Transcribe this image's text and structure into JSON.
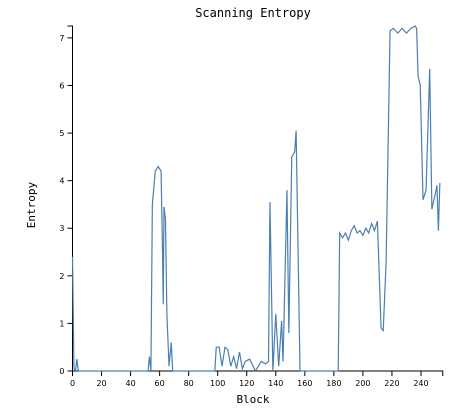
{
  "chart_data": {
    "type": "line",
    "title": "Scanning Entropy",
    "x_label": "Block",
    "y_label": "Entropy",
    "xlim": [
      0,
      255
    ],
    "ylim": [
      0,
      7.25
    ],
    "xticks": [
      0,
      20,
      40,
      60,
      80,
      100,
      120,
      140,
      160,
      180,
      200,
      220,
      240
    ],
    "yticks": [
      0,
      1,
      2,
      3,
      4,
      5,
      6,
      7
    ],
    "series": [
      {
        "name": "Entropy",
        "color": "#4a7fb0",
        "x": [
          0,
          1,
          2,
          3,
          4,
          52,
          53,
          54,
          55,
          57,
          59,
          61,
          62,
          62.5,
          63,
          64,
          65,
          66.5,
          68,
          69,
          98,
          99,
          101,
          103,
          105,
          107,
          109,
          111,
          113,
          115,
          117,
          119,
          122,
          126,
          130,
          133,
          135,
          136,
          138,
          140,
          142,
          144,
          145,
          147.7,
          149,
          151,
          153,
          154,
          156.7,
          183,
          184,
          186,
          188,
          190,
          192,
          194,
          196,
          198,
          200,
          202,
          204,
          206,
          208,
          210,
          212.5,
          214,
          216,
          218.7,
          221,
          224,
          227,
          230,
          233,
          236,
          237,
          238,
          239.5,
          241.4,
          243.5,
          246,
          247.5,
          249.7,
          251,
          252,
          253
        ],
        "values": [
          2.4,
          0.05,
          0,
          0.25,
          0,
          0,
          0.3,
          0,
          3.5,
          4.2,
          4.3,
          4.2,
          2.5,
          1.4,
          3.45,
          3.2,
          1.2,
          0.1,
          0.6,
          0,
          0,
          0.5,
          0.5,
          0.1,
          0.5,
          0.45,
          0.1,
          0.3,
          0.05,
          0.4,
          0.05,
          0.2,
          0.25,
          0,
          0.2,
          0.15,
          0.2,
          3.55,
          0,
          1.2,
          0.1,
          1.05,
          0.2,
          3.8,
          0.8,
          4.5,
          4.6,
          5.05,
          0,
          0,
          2.9,
          2.8,
          2.9,
          2.75,
          2.95,
          3.05,
          2.9,
          2.95,
          2.85,
          3.0,
          2.9,
          3.1,
          2.95,
          3.15,
          0.9,
          0.85,
          2.3,
          7.15,
          7.2,
          7.1,
          7.2,
          7.1,
          7.2,
          7.25,
          7.2,
          6.2,
          6.0,
          3.6,
          3.8,
          6.35,
          3.4,
          3.7,
          3.9,
          2.95,
          3.95
        ]
      }
    ]
  }
}
